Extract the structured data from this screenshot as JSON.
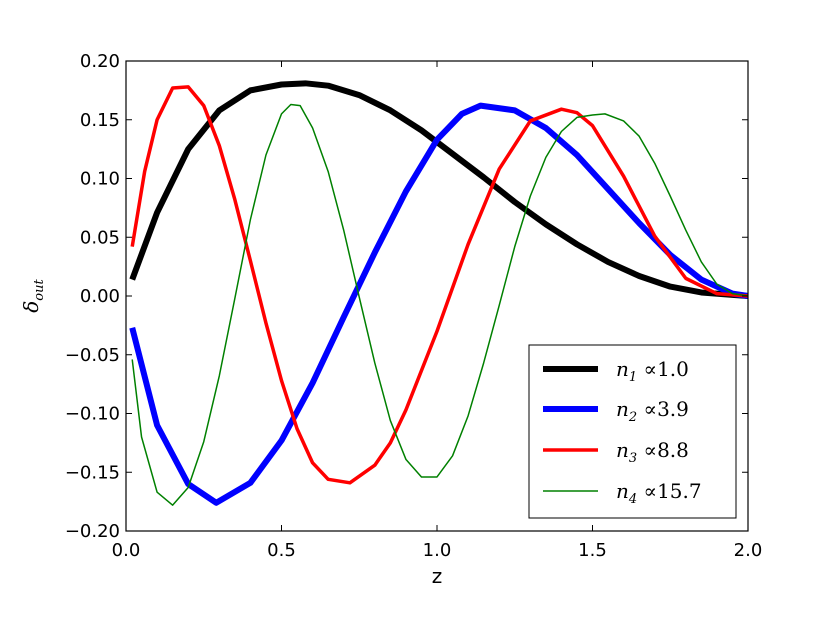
{
  "chart_data": {
    "type": "line",
    "xlabel": "z",
    "ylabel": "δ",
    "ylabel_subscript": "out",
    "xlim": [
      0.0,
      2.0
    ],
    "ylim": [
      -0.2,
      0.2
    ],
    "xticks": [
      0.0,
      0.5,
      1.0,
      1.5,
      2.0
    ],
    "xtick_labels": [
      "0.0",
      "0.5",
      "1.0",
      "1.5",
      "2.0"
    ],
    "yticks": [
      -0.2,
      -0.15,
      -0.1,
      -0.05,
      0.0,
      0.05,
      0.1,
      0.15,
      0.2
    ],
    "ytick_labels": [
      "−0.20",
      "−0.15",
      "−0.10",
      "−0.05",
      "0.00",
      "0.05",
      "0.10",
      "0.15",
      "0.20"
    ],
    "grid": false,
    "legend_position": "bottom-right",
    "series": [
      {
        "name": "n",
        "subscript": "1",
        "value_label": " ∝1.0",
        "color": "#000000",
        "width": "thick",
        "x": [
          0.02,
          0.1,
          0.2,
          0.3,
          0.4,
          0.5,
          0.577,
          0.65,
          0.75,
          0.85,
          0.95,
          1.05,
          1.15,
          1.25,
          1.35,
          1.45,
          1.55,
          1.65,
          1.75,
          1.85,
          1.95,
          2.0
        ],
        "y": [
          0.014,
          0.071,
          0.125,
          0.158,
          0.175,
          0.18,
          0.181,
          0.179,
          0.171,
          0.158,
          0.141,
          0.121,
          0.101,
          0.08,
          0.061,
          0.044,
          0.029,
          0.017,
          0.008,
          0.003,
          0.001,
          0.0
        ]
      },
      {
        "name": "n",
        "subscript": "2",
        "value_label": " ∝3.9",
        "color": "#0000ff",
        "width": "thick",
        "x": [
          0.02,
          0.1,
          0.2,
          0.29,
          0.4,
          0.5,
          0.6,
          0.7,
          0.8,
          0.9,
          1.0,
          1.08,
          1.14,
          1.25,
          1.35,
          1.45,
          1.55,
          1.65,
          1.75,
          1.85,
          1.95,
          2.0
        ],
        "y": [
          -0.027,
          -0.11,
          -0.16,
          -0.176,
          -0.159,
          -0.123,
          -0.074,
          -0.018,
          0.037,
          0.089,
          0.133,
          0.155,
          0.162,
          0.158,
          0.143,
          0.12,
          0.091,
          0.062,
          0.035,
          0.014,
          0.002,
          0.0
        ]
      },
      {
        "name": "n",
        "subscript": "3",
        "value_label": " ∝8.8",
        "color": "#ff0000",
        "width": "medium",
        "x": [
          0.02,
          0.06,
          0.1,
          0.15,
          0.2,
          0.25,
          0.3,
          0.35,
          0.4,
          0.45,
          0.5,
          0.55,
          0.6,
          0.65,
          0.72,
          0.8,
          0.85,
          0.9,
          1.0,
          1.1,
          1.2,
          1.3,
          1.4,
          1.45,
          1.5,
          1.6,
          1.7,
          1.8,
          1.9,
          2.0
        ],
        "y": [
          0.042,
          0.106,
          0.15,
          0.177,
          0.178,
          0.162,
          0.128,
          0.082,
          0.03,
          -0.023,
          -0.072,
          -0.113,
          -0.142,
          -0.156,
          -0.159,
          -0.144,
          -0.125,
          -0.097,
          -0.03,
          0.044,
          0.108,
          0.149,
          0.159,
          0.156,
          0.145,
          0.102,
          0.051,
          0.015,
          0.002,
          0.0
        ]
      },
      {
        "name": "n",
        "subscript": "4",
        "value_label": " ∝15.7",
        "color": "#008000",
        "width": "thin",
        "x": [
          0.02,
          0.05,
          0.1,
          0.15,
          0.2,
          0.25,
          0.3,
          0.35,
          0.4,
          0.45,
          0.5,
          0.53,
          0.56,
          0.6,
          0.65,
          0.7,
          0.75,
          0.8,
          0.85,
          0.9,
          0.95,
          1.0,
          1.05,
          1.1,
          1.15,
          1.2,
          1.25,
          1.3,
          1.35,
          1.4,
          1.45,
          1.5,
          1.54,
          1.6,
          1.65,
          1.7,
          1.75,
          1.8,
          1.85,
          1.9,
          1.95,
          2.0
        ],
        "y": [
          -0.054,
          -0.12,
          -0.167,
          -0.178,
          -0.163,
          -0.124,
          -0.068,
          -0.002,
          0.065,
          0.12,
          0.155,
          0.163,
          0.162,
          0.143,
          0.106,
          0.056,
          -0.001,
          -0.057,
          -0.106,
          -0.139,
          -0.154,
          -0.154,
          -0.136,
          -0.102,
          -0.057,
          -0.008,
          0.042,
          0.085,
          0.118,
          0.14,
          0.152,
          0.154,
          0.155,
          0.149,
          0.136,
          0.113,
          0.085,
          0.056,
          0.029,
          0.01,
          0.002,
          0.0
        ]
      }
    ]
  }
}
